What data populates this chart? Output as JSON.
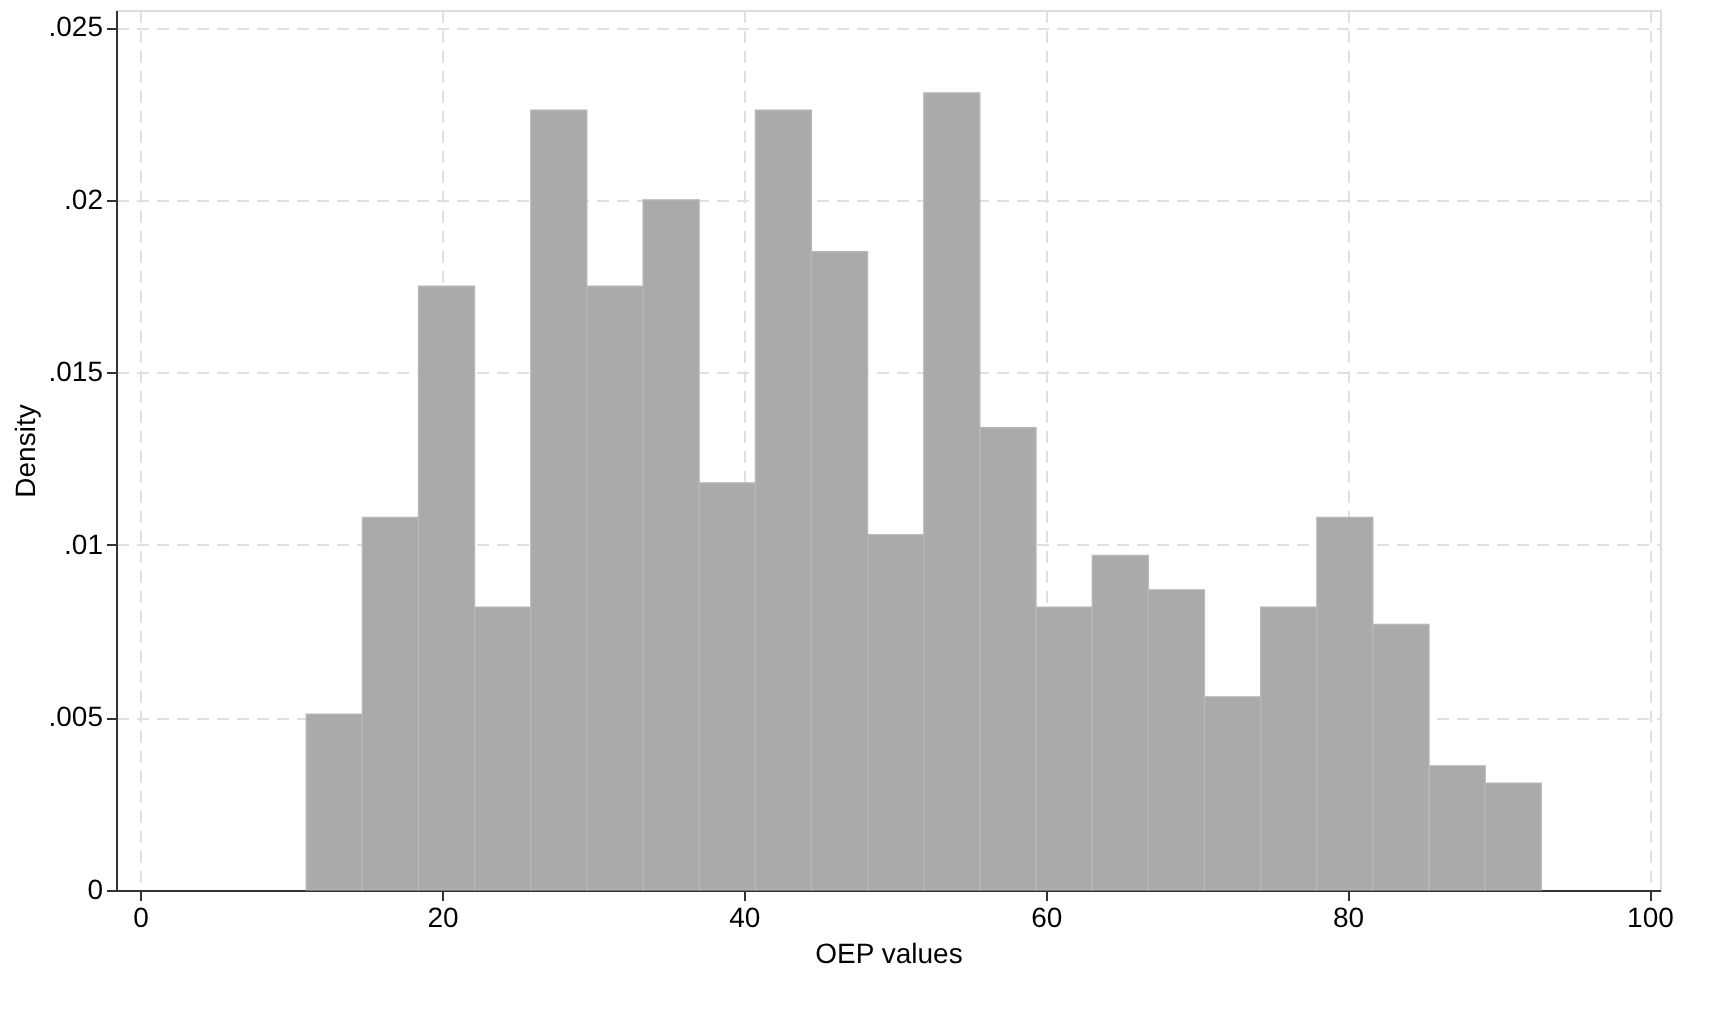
{
  "chart_data": {
    "type": "histogram",
    "xlabel": "OEP values",
    "ylabel": "Density",
    "bins": [
      11.0,
      14.72,
      18.44,
      22.16,
      25.88,
      29.6,
      33.32,
      37.04,
      40.76,
      44.48,
      48.2,
      51.92,
      55.64,
      59.36,
      63.08,
      66.8,
      70.52,
      74.24,
      77.96,
      81.68,
      85.4,
      89.12,
      92.84
    ],
    "values": [
      0.0051,
      0.0108,
      0.0175,
      0.0082,
      0.0226,
      0.0175,
      0.02,
      0.0118,
      0.0226,
      0.0185,
      0.0103,
      0.0231,
      0.0134,
      0.0082,
      0.0097,
      0.0087,
      0.0056,
      0.0082,
      0.0108,
      0.0077,
      0.0036,
      0.0031
    ],
    "color": "#aaaaaa",
    "xlim": [
      -1.6,
      100.7
    ],
    "xticks": [
      0,
      20,
      40,
      60,
      80,
      100
    ],
    "ylim": [
      0,
      0.0255
    ],
    "yticks": [
      {
        "value": 0,
        "label": "0"
      },
      {
        "value": 0.005,
        "label": ".005"
      },
      {
        "value": 0.01,
        "label": ".01"
      },
      {
        "value": 0.015,
        "label": ".015"
      },
      {
        "value": 0.02,
        "label": ".02"
      },
      {
        "value": 0.025,
        "label": ".025"
      }
    ],
    "grid": true
  }
}
